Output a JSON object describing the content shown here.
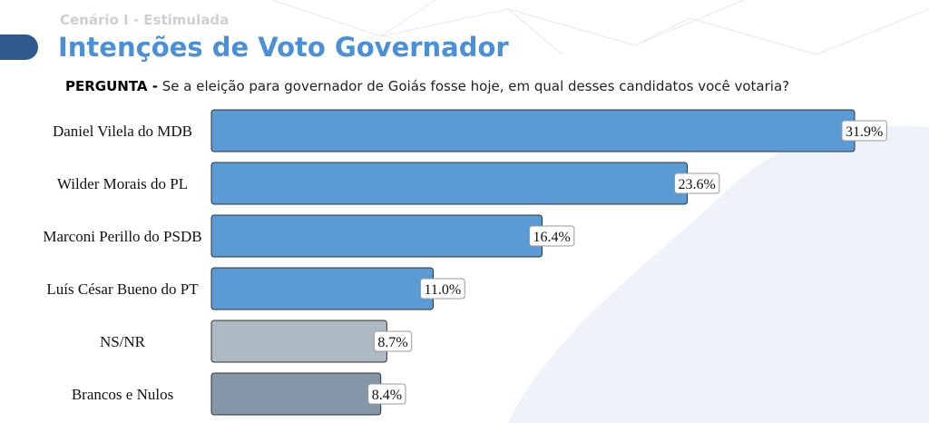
{
  "chart_data": {
    "type": "bar",
    "orientation": "horizontal",
    "subtitle": "Cenário I - Estimulada",
    "title": "Intenções de Voto Governador",
    "question_label": "PERGUNTA -",
    "question": "Se a eleição para governador de Goiás fosse hoje, em qual desses candidatos você votaria?",
    "categories": [
      "Daniel Vilela do MDB",
      "Wilder Morais do PL",
      "Marconi Perillo do PSDB",
      "Luís César Bueno do PT",
      "NS/NR",
      "Brancos e Nulos"
    ],
    "values": [
      31.9,
      23.6,
      16.4,
      11.0,
      8.7,
      8.4
    ],
    "value_labels": [
      "31.9%",
      "23.6%",
      "16.4%",
      "11.0%",
      "8.7%",
      "8.4%"
    ],
    "colors": [
      "#5b9bd5",
      "#5b9bd5",
      "#5b9bd5",
      "#5b9bd5",
      "#adb9c3",
      "#8497a8"
    ]
  }
}
